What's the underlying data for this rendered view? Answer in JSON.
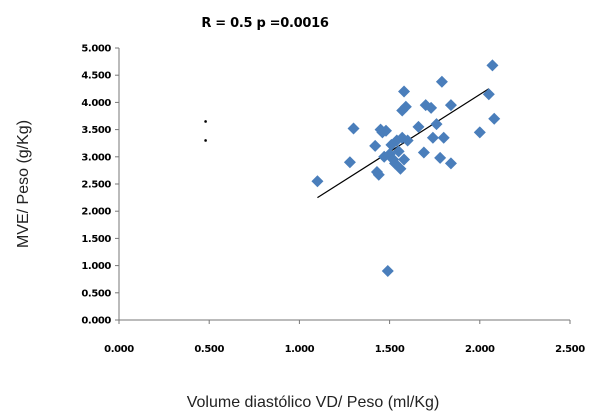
{
  "chart_data": {
    "type": "scatter",
    "title": "R = 0.5 p =0.0016",
    "xlabel": "Volume diastólico VD/ Peso  (ml/Kg)",
    "ylabel": "MVE/ Peso (g/Kg)",
    "xlim": [
      0,
      2.5
    ],
    "ylim": [
      0,
      5
    ],
    "x_ticks": [
      0,
      0.5,
      1.0,
      1.5,
      2.0,
      2.5
    ],
    "x_tick_labels": [
      "0.000",
      "0.500",
      "1.000",
      "1.500",
      "2.000",
      "2.500"
    ],
    "y_ticks": [
      0,
      0.5,
      1.0,
      1.5,
      2.0,
      2.5,
      3.0,
      3.5,
      4.0,
      4.5,
      5.0
    ],
    "y_tick_labels": [
      "0.000",
      "0.500",
      "1.000",
      "1.500",
      "2.000",
      "2.500",
      "3.000",
      "3.500",
      "4.000",
      "4.500",
      "5.000"
    ],
    "grid": false,
    "marker_color": "#4a7ebb",
    "trendline_color": "#000000",
    "points": [
      {
        "x": 1.1,
        "y": 2.55
      },
      {
        "x": 1.28,
        "y": 2.9
      },
      {
        "x": 1.3,
        "y": 3.52
      },
      {
        "x": 1.42,
        "y": 3.2
      },
      {
        "x": 1.43,
        "y": 2.72
      },
      {
        "x": 1.44,
        "y": 2.67
      },
      {
        "x": 1.45,
        "y": 3.5
      },
      {
        "x": 1.46,
        "y": 3.45
      },
      {
        "x": 1.47,
        "y": 3.0
      },
      {
        "x": 1.48,
        "y": 3.48
      },
      {
        "x": 1.49,
        "y": 0.9
      },
      {
        "x": 1.5,
        "y": 3.05
      },
      {
        "x": 1.51,
        "y": 3.22
      },
      {
        "x": 1.52,
        "y": 2.95
      },
      {
        "x": 1.53,
        "y": 2.88
      },
      {
        "x": 1.54,
        "y": 3.3
      },
      {
        "x": 1.55,
        "y": 3.1
      },
      {
        "x": 1.56,
        "y": 2.78
      },
      {
        "x": 1.57,
        "y": 3.35
      },
      {
        "x": 1.57,
        "y": 3.85
      },
      {
        "x": 1.58,
        "y": 4.2
      },
      {
        "x": 1.58,
        "y": 2.95
      },
      {
        "x": 1.59,
        "y": 3.92
      },
      {
        "x": 1.6,
        "y": 3.3
      },
      {
        "x": 1.66,
        "y": 3.55
      },
      {
        "x": 1.69,
        "y": 3.08
      },
      {
        "x": 1.7,
        "y": 3.95
      },
      {
        "x": 1.73,
        "y": 3.9
      },
      {
        "x": 1.74,
        "y": 3.35
      },
      {
        "x": 1.76,
        "y": 3.6
      },
      {
        "x": 1.78,
        "y": 2.98
      },
      {
        "x": 1.79,
        "y": 4.38
      },
      {
        "x": 1.8,
        "y": 3.35
      },
      {
        "x": 1.84,
        "y": 3.95
      },
      {
        "x": 1.84,
        "y": 2.88
      },
      {
        "x": 2.0,
        "y": 3.45
      },
      {
        "x": 2.05,
        "y": 4.15
      },
      {
        "x": 2.07,
        "y": 4.68
      },
      {
        "x": 2.08,
        "y": 3.7
      }
    ],
    "trendline": {
      "x1": 1.1,
      "y1": 2.25,
      "x2": 2.05,
      "y2": 4.25
    },
    "stray_marks": [
      {
        "x": 0.48,
        "y": 3.65
      },
      {
        "x": 0.48,
        "y": 3.3
      }
    ]
  }
}
